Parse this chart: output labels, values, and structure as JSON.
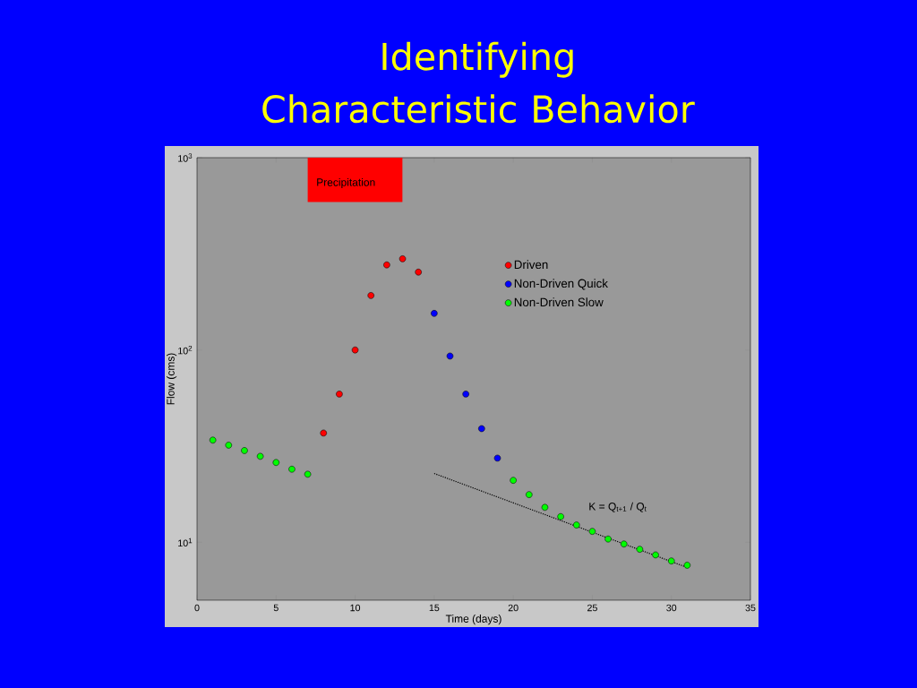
{
  "chart_data": {
    "type": "scatter",
    "title": "Identifying Characteristic Behavior",
    "xlabel": "Time (days)",
    "ylabel": "Flow (cms)",
    "xlim": [
      0,
      35
    ],
    "ylim": [
      5,
      1000
    ],
    "xticks": [
      0,
      5,
      10,
      15,
      20,
      25,
      30,
      35
    ],
    "yticks": [
      {
        "value": 10,
        "label": "10$^{1}$"
      },
      {
        "value": 100,
        "label": "10$^{2}$"
      },
      {
        "value": 1000,
        "label": "10$^{3}$"
      }
    ],
    "log": "y",
    "legend": "top right",
    "marker": "circle",
    "bands": [
      {
        "axis": "x",
        "from": 7,
        "to": 13,
        "label": "Precipitation",
        "color": "#ff0000"
      }
    ],
    "annotations": [
      "K = Q$_{t+1}$ / Q$_{t}$"
    ],
    "series": [
      {
        "name": "Driven",
        "color": "#ff0000",
        "x": [
          8,
          9,
          10,
          11,
          12,
          13,
          14
        ],
        "values": [
          37,
          59,
          100,
          192,
          277,
          298,
          254
        ]
      },
      {
        "name": "Non-Driven Quick",
        "color": "#0000ff",
        "x": [
          15,
          16,
          17,
          18,
          19
        ],
        "values": [
          155,
          93,
          59,
          39,
          27.4
        ]
      },
      {
        "name": "Non-Driven Slow",
        "color": "#00ff00",
        "x": [
          1,
          2,
          3,
          4,
          5,
          6,
          7,
          20,
          21,
          22,
          23,
          24,
          25,
          26,
          27,
          28,
          29,
          30,
          31
        ],
        "values": [
          34,
          32,
          30,
          28,
          26,
          24,
          22.6,
          21,
          17.7,
          15.2,
          13.6,
          12.3,
          11.4,
          10.4,
          9.8,
          9.2,
          8.6,
          8.0,
          7.6
        ]
      },
      {
        "type": "line",
        "color": "#000000",
        "line_style": "dotted",
        "marker": "none",
        "x": [
          15,
          31
        ],
        "values": [
          22.8,
          7.4
        ]
      }
    ]
  }
}
